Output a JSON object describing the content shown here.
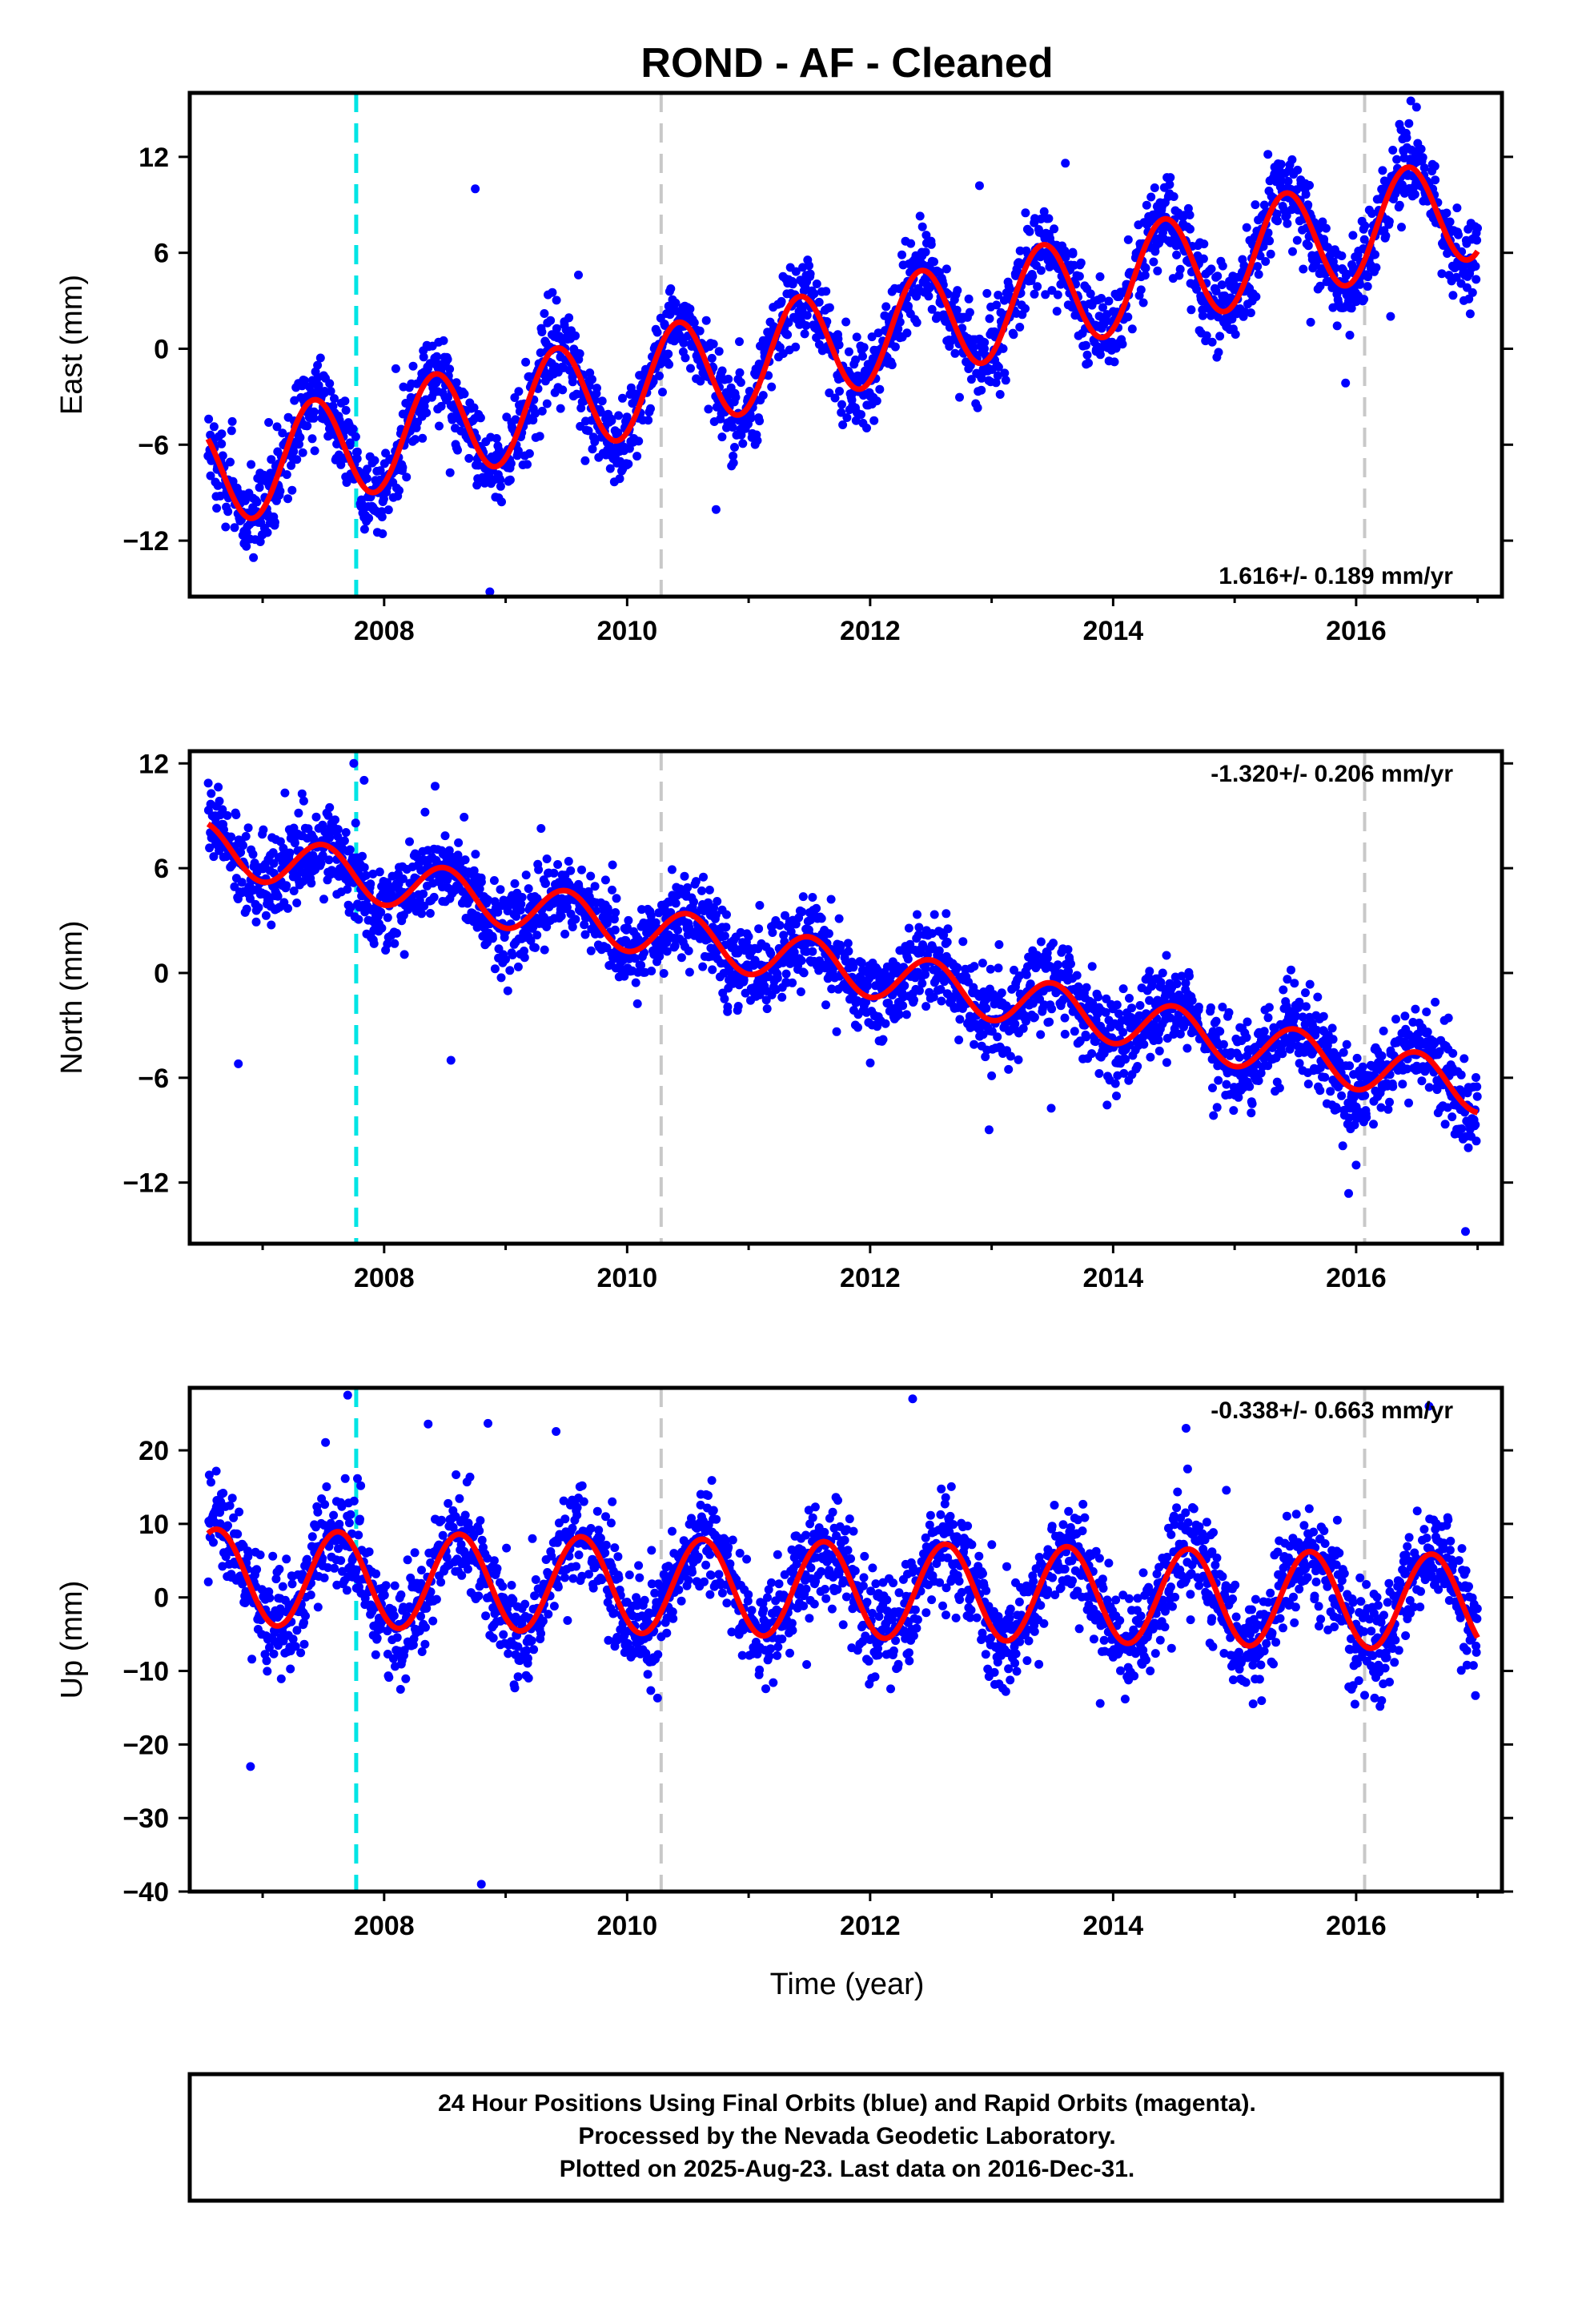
{
  "chart_data": {
    "type": "scatter",
    "title": "ROND  - AF - Cleaned",
    "xlabel": "Time (year)",
    "x_ticks": [
      "2008",
      "2010",
      "2012",
      "2014",
      "2016"
    ],
    "xlim": [
      2006.4,
      2017.2
    ],
    "vertical_lines": [
      {
        "x": 2007.77,
        "color": "#00e5e5",
        "style": "dashed"
      },
      {
        "x": 2010.28,
        "color": "#c8c8c8",
        "style": "dashed"
      },
      {
        "x": 2016.07,
        "color": "#c8c8c8",
        "style": "dashed"
      }
    ],
    "data_start": 2006.55,
    "data_end": 2017.0,
    "panels": [
      {
        "name": "east",
        "ylabel": "East (mm)",
        "ylim": [
          -15.5,
          16
        ],
        "y_ticks": [
          -12,
          -6,
          0,
          6,
          12
        ],
        "y_tick_labels": [
          "−12",
          "−6",
          "0",
          "6",
          "12"
        ],
        "rate_text": "1.616+/- 0.189 mm/yr",
        "rate_position": "bottom-right",
        "model": {
          "offset": -7.9,
          "trend": 1.616,
          "amplitude": 3.3,
          "peak_phase": 0.42
        },
        "scatter_sd": 1.3,
        "outliers": [
          [
            2008.75,
            10.0
          ],
          [
            2008.87,
            -15.2
          ],
          [
            2016.45,
            15.5
          ],
          [
            2012.9,
            10.2
          ]
        ]
      },
      {
        "name": "north",
        "ylabel": "North (mm)",
        "ylim": [
          -15.5,
          12.7
        ],
        "y_ticks": [
          -12,
          -6,
          0,
          6,
          12
        ],
        "y_tick_labels": [
          "−12",
          "−6",
          "0",
          "6",
          "12"
        ],
        "rate_text": "-1.320+/- 0.206 mm/yr",
        "rate_position": "top-right",
        "model": {
          "offset": 7.2,
          "trend": -1.32,
          "amplitude": 1.4,
          "peak_phase": 0.5
        },
        "scatter_sd": 1.2,
        "outliers": [
          [
            2006.8,
            -5.2
          ],
          [
            2007.75,
            12.0
          ],
          [
            2008.55,
            -5.0
          ],
          [
            2016.0,
            -11.0
          ],
          [
            2016.9,
            -14.8
          ]
        ]
      },
      {
        "name": "up",
        "ylabel": "Up (mm)",
        "ylim": [
          -40,
          28.5
        ],
        "y_ticks": [
          -40,
          -30,
          -20,
          -10,
          0,
          10,
          20
        ],
        "y_tick_labels": [
          "−40",
          "−30",
          "−20",
          "−10",
          "0",
          "10",
          "20"
        ],
        "rate_text": "-0.338+/- 0.663 mm/yr",
        "rate_position": "top-right",
        "model": {
          "offset": 2.8,
          "trend": -0.338,
          "amplitude": 6.5,
          "peak_phase": 0.62
        },
        "scatter_sd": 3.5,
        "outliers": [
          [
            2006.9,
            -23.0
          ],
          [
            2008.8,
            -39.0
          ],
          [
            2007.7,
            27.5
          ],
          [
            2012.35,
            27.0
          ],
          [
            2014.6,
            23.0
          ],
          [
            2016.6,
            26.0
          ]
        ]
      }
    ],
    "series": [
      {
        "name": "Final Orbits (blue)",
        "color": "#0000ff"
      },
      {
        "name": "model fit",
        "color": "#ff0000"
      }
    ]
  },
  "footer": {
    "line1": "24 Hour Positions Using Final Orbits (blue) and Rapid Orbits (magenta).",
    "line2": "Processed by the Nevada Geodetic Laboratory.",
    "line3": "Plotted on 2025-Aug-23. Last data on 2016-Dec-31."
  }
}
